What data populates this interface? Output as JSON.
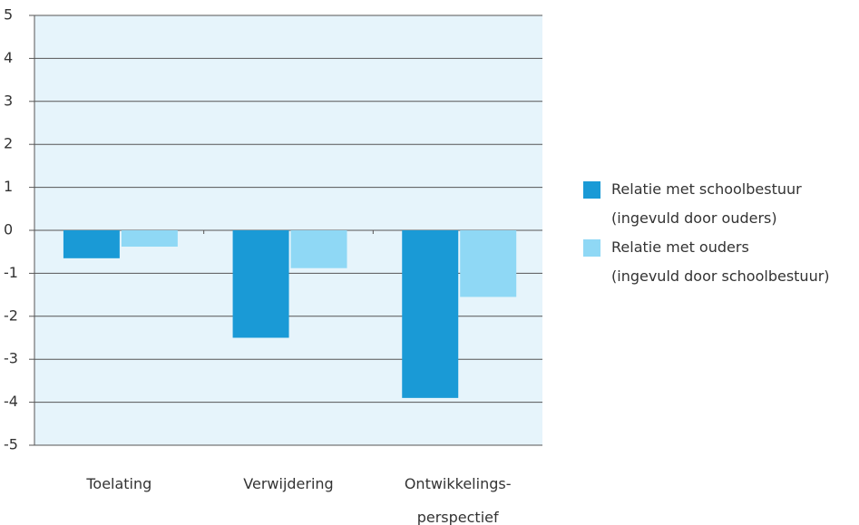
{
  "chart_data": {
    "type": "bar",
    "categories": [
      "Toelating",
      "Verwijdering",
      "Ontwikkelings-\nperspectief"
    ],
    "series": [
      {
        "name": "Relatie met schoolbestuur\n(ingevuld door ouders)",
        "color": "#1a9ad6",
        "values": [
          -0.65,
          -2.5,
          -3.9
        ]
      },
      {
        "name": "Relatie met ouders\n(ingevuld door schoolbestuur)",
        "color": "#8fd8f5",
        "values": [
          -0.38,
          -0.88,
          -1.55
        ]
      }
    ],
    "ylim": [
      -5,
      5
    ],
    "yticks": [
      -5,
      -4,
      -3,
      -2,
      -1,
      0,
      1,
      2,
      3,
      4,
      5
    ],
    "grid": true,
    "legend": "right"
  }
}
